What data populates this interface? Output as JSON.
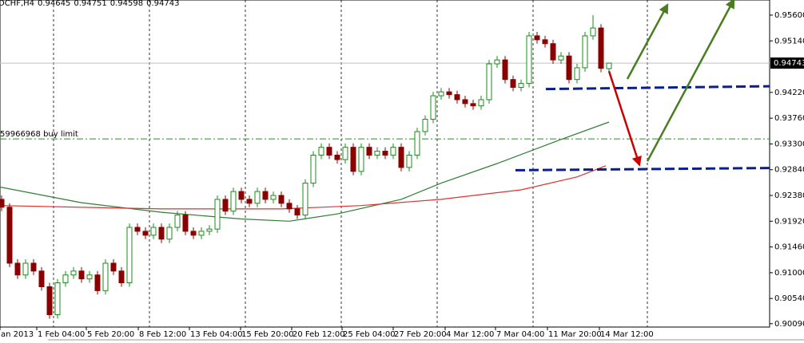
{
  "chart_data": {
    "type": "candlestick",
    "header": {
      "symbol": "DCHF,H4"
    },
    "xlim": [
      -0.2,
      96.1
    ],
    "ylim": [
      0.9003,
      0.9587
    ],
    "yticks": [
      {
        "value": 0.956,
        "label": "0.95600"
      },
      {
        "value": 0.9514,
        "label": "0.95140"
      },
      {
        "value": 0.9422,
        "label": "0.94220"
      },
      {
        "value": 0.9376,
        "label": "0.93760"
      },
      {
        "value": 0.933,
        "label": "0.93300"
      },
      {
        "value": 0.9284,
        "label": "0.92840"
      },
      {
        "value": 0.9238,
        "label": "0.92380"
      },
      {
        "value": 0.9192,
        "label": "0.91920"
      },
      {
        "value": 0.9146,
        "label": "0.91460"
      },
      {
        "value": 0.91,
        "label": "0.91000"
      },
      {
        "value": 0.9054,
        "label": "0.90540"
      },
      {
        "value": 0.9009,
        "label": "0.90090"
      }
    ],
    "xticks": [
      {
        "value": -0.2,
        "label": "an 2013"
      },
      {
        "value": 4.4,
        "label": "1 Feb 04:00"
      },
      {
        "value": 10.6,
        "label": "5 Feb 20:00"
      },
      {
        "value": 17.1,
        "label": "8 Feb 12:00"
      },
      {
        "value": 23.5,
        "label": "13 Feb 04:00"
      },
      {
        "value": 29.9,
        "label": "15 Feb 20:00"
      },
      {
        "value": 36.3,
        "label": "20 Feb 12:00"
      },
      {
        "value": 42.6,
        "label": "25 Feb 04:00"
      },
      {
        "value": 49,
        "label": "27 Feb 20:00"
      },
      {
        "value": 55.5,
        "label": "4 Mar 12:00"
      },
      {
        "value": 61.8,
        "label": "7 Mar 04:00"
      },
      {
        "value": 68.3,
        "label": "11 Mar 20:00"
      },
      {
        "value": 74.8,
        "label": "14 Mar 12:00"
      }
    ],
    "xgrid": [
      6.5,
      18.5,
      30.5,
      42.5,
      54.5,
      66.5,
      80.8
    ],
    "up_color": "#1a8c1a",
    "down_color": "#8b0000",
    "open": [
      0.9231,
      0.9217,
      0.9117,
      0.9096,
      0.9117,
      0.9103,
      0.9075,
      0.9025,
      0.9082,
      0.9096,
      0.9103,
      0.9089,
      0.9096,
      0.9068,
      0.9117,
      0.9103,
      0.9082,
      0.9181,
      0.9174,
      0.9167,
      0.9181,
      0.916,
      0.9181,
      0.9203,
      0.9174,
      0.9167,
      0.9174,
      0.9178,
      0.9231,
      0.921,
      0.9245,
      0.9231,
      0.9224,
      0.9245,
      0.9231,
      0.9238,
      0.9224,
      0.9214,
      0.9203,
      0.926,
      0.931,
      0.9324,
      0.931,
      0.9302,
      0.9324,
      0.9281,
      0.9324,
      0.931,
      0.9317,
      0.931,
      0.9324,
      0.9288,
      0.931,
      0.9352,
      0.9374,
      0.9416,
      0.9423,
      0.9418,
      0.9409,
      0.9402,
      0.9398,
      0.9409,
      0.9473,
      0.948,
      0.9445,
      0.9431,
      0.9438,
      0.9523,
      0.9516,
      0.9509,
      0.948,
      0.9487,
      0.9445,
      0.9466,
      0.9523,
      0.9537,
      0.94645
    ],
    "high": [
      0.9238,
      0.9224,
      0.9124,
      0.9124,
      0.9124,
      0.911,
      0.9082,
      0.9089,
      0.9103,
      0.911,
      0.911,
      0.9103,
      0.9103,
      0.9124,
      0.9124,
      0.911,
      0.9188,
      0.9188,
      0.9181,
      0.9188,
      0.9188,
      0.9188,
      0.921,
      0.921,
      0.9181,
      0.9181,
      0.9185,
      0.9238,
      0.9238,
      0.9252,
      0.9252,
      0.9238,
      0.9252,
      0.9252,
      0.9245,
      0.9245,
      0.9231,
      0.9221,
      0.9267,
      0.9317,
      0.9331,
      0.9331,
      0.9317,
      0.9331,
      0.9331,
      0.9331,
      0.9331,
      0.9324,
      0.9324,
      0.9331,
      0.9331,
      0.9317,
      0.9359,
      0.9381,
      0.9423,
      0.943,
      0.943,
      0.9425,
      0.9416,
      0.9409,
      0.9416,
      0.948,
      0.9487,
      0.9487,
      0.9452,
      0.9445,
      0.953,
      0.953,
      0.9523,
      0.9516,
      0.9494,
      0.9494,
      0.9473,
      0.953,
      0.956,
      0.9544,
      0.94751
    ],
    "low": [
      0.921,
      0.911,
      0.9089,
      0.9089,
      0.9096,
      0.9068,
      0.9018,
      0.9018,
      0.9075,
      0.9089,
      0.9082,
      0.9082,
      0.9061,
      0.9061,
      0.9096,
      0.9075,
      0.9075,
      0.9167,
      0.916,
      0.916,
      0.9153,
      0.9153,
      0.9174,
      0.9167,
      0.916,
      0.916,
      0.9167,
      0.9171,
      0.9203,
      0.9203,
      0.9224,
      0.9217,
      0.9217,
      0.9224,
      0.9224,
      0.9217,
      0.9207,
      0.9196,
      0.9196,
      0.9253,
      0.9303,
      0.9303,
      0.9295,
      0.9295,
      0.9274,
      0.9274,
      0.9303,
      0.9303,
      0.9303,
      0.9303,
      0.9281,
      0.9281,
      0.9303,
      0.9345,
      0.9367,
      0.9409,
      0.9411,
      0.9402,
      0.9395,
      0.9391,
      0.9391,
      0.9402,
      0.9466,
      0.9438,
      0.9424,
      0.9424,
      0.9431,
      0.9509,
      0.9502,
      0.9473,
      0.9473,
      0.9438,
      0.9438,
      0.9459,
      0.9516,
      0.9458,
      0.94598
    ],
    "close": [
      0.9217,
      0.9117,
      0.9096,
      0.9117,
      0.9103,
      0.9075,
      0.9025,
      0.9082,
      0.9096,
      0.9103,
      0.9089,
      0.9096,
      0.9068,
      0.9117,
      0.9103,
      0.9082,
      0.9181,
      0.9174,
      0.9167,
      0.9181,
      0.916,
      0.9181,
      0.9203,
      0.9174,
      0.9167,
      0.9174,
      0.9178,
      0.9231,
      0.921,
      0.9245,
      0.9231,
      0.9224,
      0.9245,
      0.9231,
      0.9238,
      0.9224,
      0.9214,
      0.9203,
      0.926,
      0.931,
      0.9324,
      0.931,
      0.9302,
      0.9324,
      0.9281,
      0.9324,
      0.931,
      0.9317,
      0.931,
      0.9324,
      0.9288,
      0.931,
      0.9352,
      0.9374,
      0.9416,
      0.9423,
      0.9418,
      0.9409,
      0.9402,
      0.9398,
      0.9409,
      0.9473,
      0.948,
      0.9445,
      0.9431,
      0.9438,
      0.9523,
      0.9516,
      0.9509,
      0.948,
      0.9487,
      0.9445,
      0.9466,
      0.9523,
      0.9537,
      0.9465,
      0.94743
    ],
    "moving_averages": [
      {
        "color": "#2e7d32",
        "x": [
          -0.2,
          10,
          20,
          30,
          36,
          42,
          50,
          55,
          62,
          70,
          76
        ],
        "values": [
          0.9253,
          0.9225,
          0.9208,
          0.9196,
          0.9192,
          0.9205,
          0.9231,
          0.926,
          0.9295,
          0.9338,
          0.9369
        ]
      },
      {
        "color": "#e03030",
        "x": [
          -0.2,
          20,
          35,
          45,
          55,
          65,
          72,
          75.6
        ],
        "values": [
          0.922,
          0.9214,
          0.9214,
          0.922,
          0.9231,
          0.9248,
          0.9271,
          0.9291
        ]
      }
    ],
    "price_line_color": "#c0c0c0",
    "buy_limit": {
      "label": "59966968 buy limit",
      "value": 0.9339,
      "color": "#2e8b2e"
    },
    "drawings": [
      {
        "color": "#0a1f8f",
        "dashed": true,
        "arrow": false,
        "x": [
          68.1,
          96.1
        ],
        "y": [
          0.9428,
          0.9433
        ]
      },
      {
        "color": "#0a1f8f",
        "dashed": true,
        "arrow": false,
        "x": [
          64.3,
          96.1
        ],
        "y": [
          0.9283,
          0.9287
        ]
      },
      {
        "color": "#4a7d22",
        "dashed": false,
        "arrow": true,
        "x": [
          78.3,
          83.3
        ],
        "y": [
          0.9446,
          0.9578
        ]
      },
      {
        "color": "#4a7d22",
        "dashed": false,
        "arrow": true,
        "x": [
          80.8,
          91.6
        ],
        "y": [
          0.9299,
          0.9587
        ]
      },
      {
        "color": "#cc0000",
        "dashed": false,
        "arrow": true,
        "x": [
          76,
          79.8
        ],
        "y": [
          0.946,
          0.9293
        ]
      }
    ]
  }
}
